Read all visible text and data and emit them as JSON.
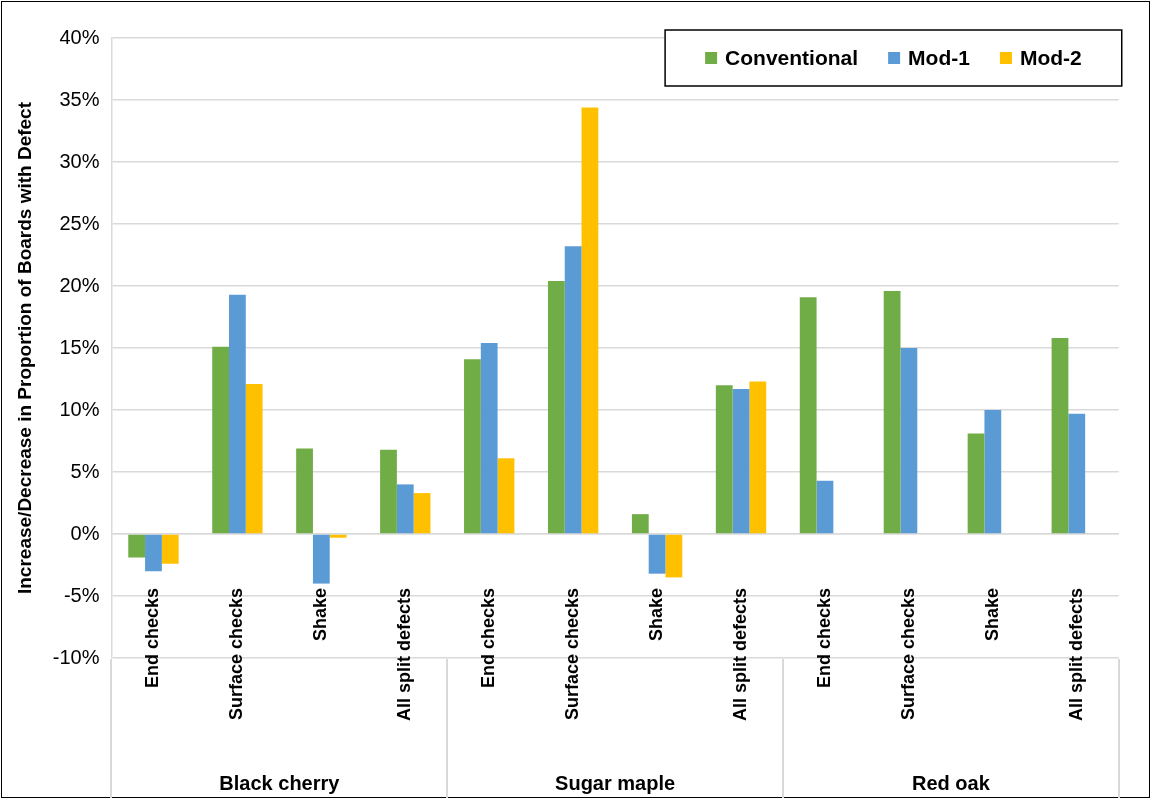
{
  "chart_data": {
    "type": "bar",
    "ylabel": "Increase/Decrease in Proportion of Boards with Defect",
    "categories": [
      "End checks",
      "Surface checks",
      "Shake",
      "All split defects",
      "End checks",
      "Surface checks",
      "Shake",
      "All split defects",
      "End checks",
      "Surface checks",
      "Shake",
      "All split defects"
    ],
    "annotations": [
      "Black cherry",
      "Sugar maple",
      "Red oak"
    ],
    "series": [
      {
        "name": "Conventional",
        "color": "#70ad47",
        "values": [
          -1.9,
          15.1,
          6.9,
          6.8,
          14.1,
          20.4,
          1.6,
          12.0,
          19.1,
          19.6,
          8.1,
          15.8
        ]
      },
      {
        "name": "Mod-1",
        "color": "#5b9bd5",
        "values": [
          -3.0,
          19.3,
          -4.0,
          4.0,
          15.4,
          23.2,
          -3.2,
          11.7,
          4.3,
          15.0,
          10.0,
          9.7
        ]
      },
      {
        "name": "Mod-2",
        "color": "#ffc000",
        "values": [
          -2.4,
          12.1,
          -0.3,
          3.3,
          6.1,
          34.4,
          -3.5,
          12.3,
          null,
          null,
          null,
          null
        ]
      }
    ],
    "ylim": [
      -10,
      40
    ],
    "yticks": [
      {
        "value": -10,
        "label": "-10%"
      },
      {
        "value": -5,
        "label": "-5%"
      },
      {
        "value": 0,
        "label": "0%"
      },
      {
        "value": 5,
        "label": "5%"
      },
      {
        "value": 10,
        "label": "10%"
      },
      {
        "value": 15,
        "label": "15%"
      },
      {
        "value": 20,
        "label": "20%"
      },
      {
        "value": 25,
        "label": "25%"
      },
      {
        "value": 30,
        "label": "30%"
      },
      {
        "value": 35,
        "label": "35%"
      },
      {
        "value": 40,
        "label": "40%"
      }
    ],
    "grid": "y",
    "legend": "top right"
  }
}
